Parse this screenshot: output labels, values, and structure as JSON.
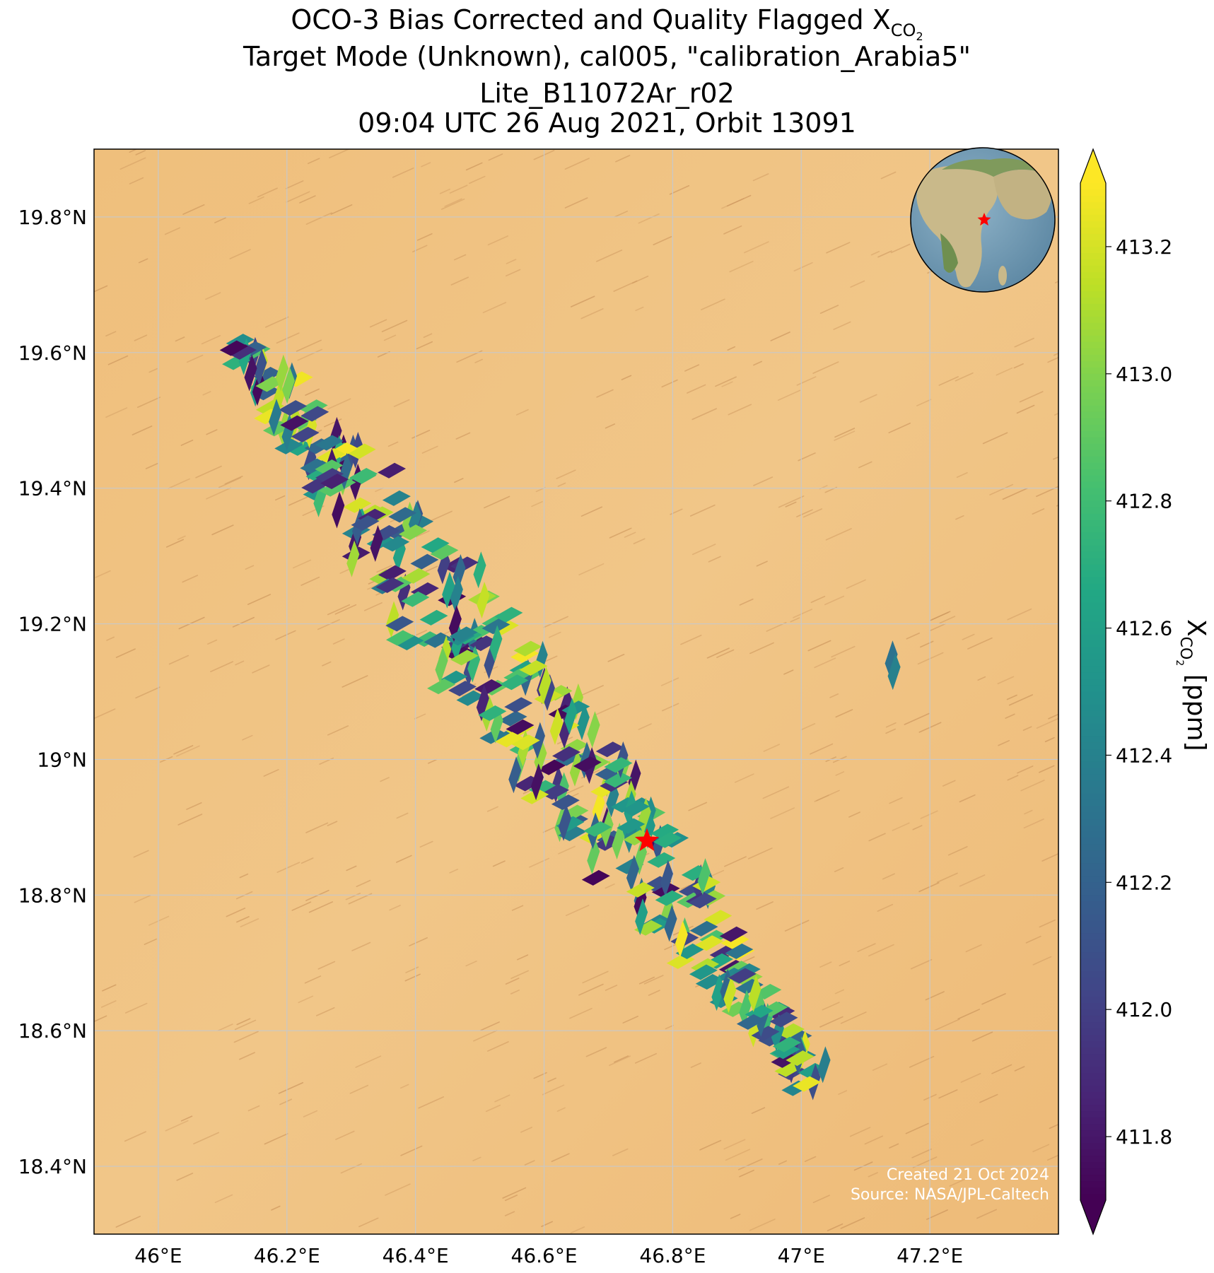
{
  "title": {
    "line1_prefix": "OCO-3 Bias Corrected and Quality Flagged X",
    "line1_sub": "CO",
    "line1_subsub": "2",
    "line2": "Target Mode (Unknown), cal005, \"calibration_Arabia5\"",
    "line3": "Lite_B11072Ar_r02",
    "line4": "09:04 UTC 26 Aug 2021, Orbit 13091"
  },
  "map": {
    "lon_range": [
      45.9,
      47.4
    ],
    "lat_range": [
      18.3,
      19.9
    ],
    "lon_ticks": [
      "46°E",
      "46.2°E",
      "46.4°E",
      "46.6°E",
      "46.8°E",
      "47°E",
      "47.2°E"
    ],
    "lon_tick_values": [
      46.0,
      46.2,
      46.4,
      46.6,
      46.8,
      47.0,
      47.2
    ],
    "lat_ticks": [
      "19.8°N",
      "19.6°N",
      "19.4°N",
      "19.2°N",
      "19°N",
      "18.8°N",
      "18.6°N",
      "18.4°N"
    ],
    "lat_tick_values": [
      19.8,
      19.6,
      19.4,
      19.2,
      19.0,
      18.8,
      18.6,
      18.4
    ],
    "target_marker": {
      "lon": 46.76,
      "lat": 18.88,
      "color": "#ff0000",
      "shape": "star-icon"
    },
    "swath_start": {
      "lon": 46.12,
      "lat": 19.61
    },
    "swath_end": {
      "lon": 47.02,
      "lat": 18.53
    },
    "isolated_sounding": {
      "lon": 47.14,
      "lat": 19.14
    },
    "background": "desert-imagery",
    "inset_globe": {
      "feature": "globe-icon",
      "marker": "star-icon",
      "marker_color": "#ff0000"
    }
  },
  "colorbar": {
    "label_prefix": "X",
    "label_sub": "CO",
    "label_subsub": "2",
    "label_suffix": " [ppm]",
    "vmin": 411.7,
    "vmax": 413.3,
    "ticks": [
      "413.2",
      "413.0",
      "412.8",
      "412.6",
      "412.4",
      "412.2",
      "412.0",
      "411.8"
    ],
    "tick_values": [
      413.2,
      413.0,
      412.8,
      412.6,
      412.4,
      412.2,
      412.0,
      411.8
    ],
    "colormap": "viridis",
    "extend": "both"
  },
  "credit": {
    "line1": "Created 21 Oct 2024",
    "line2": "Source: NASA/JPL-Caltech"
  }
}
